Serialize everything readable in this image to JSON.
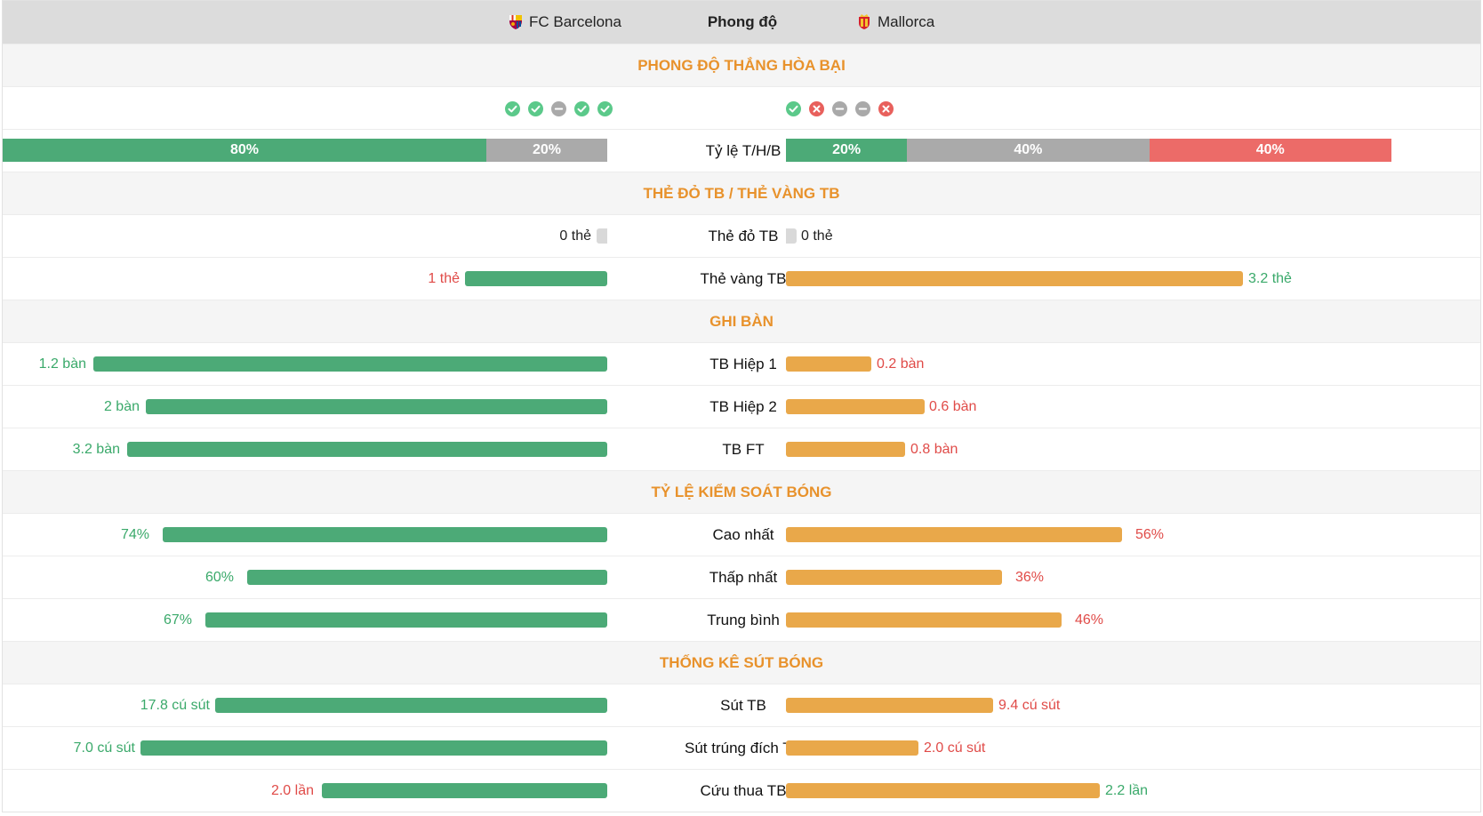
{
  "header": {
    "home_team": "FC Barcelona",
    "title": "Phong độ",
    "away_team": "Mallorca"
  },
  "colors": {
    "home_bar": "#4caa77",
    "away_bar": "#e9a84a",
    "section_title": "#e8922c",
    "win": "#5bc98a",
    "draw": "#a9a9a9",
    "loss": "#e8605c"
  },
  "form": {
    "section_title": "PHONG ĐỘ THẮNG HÒA BẠI",
    "home_results": [
      "win",
      "win",
      "draw",
      "win",
      "win"
    ],
    "away_results": [
      "win",
      "loss",
      "draw",
      "draw",
      "loss"
    ],
    "ratio_label": "Tỷ lệ T/H/B",
    "home_ratio": [
      {
        "type": "win",
        "label": "80%",
        "value": 80
      },
      {
        "type": "draw",
        "label": "20%",
        "value": 20
      }
    ],
    "away_ratio": [
      {
        "type": "win",
        "label": "20%",
        "value": 20
      },
      {
        "type": "draw",
        "label": "40%",
        "value": 40
      },
      {
        "type": "loss",
        "label": "40%",
        "value": 40
      }
    ]
  },
  "cards": {
    "section_title": "THẺ ĐỎ TB / THẺ VÀNG TB",
    "red": {
      "label": "Thẻ đỏ TB",
      "home": "0 thẻ",
      "away": "0 thẻ"
    },
    "yellow": {
      "label": "Thẻ vàng TB",
      "home": "1 thẻ",
      "away": "3.2 thẻ"
    }
  },
  "goals": {
    "section_title": "GHI BÀN",
    "rows": [
      {
        "label": "TB Hiệp 1",
        "home": "1.2 bàn",
        "away": "0.2 bàn"
      },
      {
        "label": "TB Hiệp 2",
        "home": "2 bàn",
        "away": "0.6 bàn"
      },
      {
        "label": "TB FT",
        "home": "3.2 bàn",
        "away": "0.8 bàn"
      }
    ]
  },
  "possession": {
    "section_title": "TỶ LỆ KIỂM SOÁT BÓNG",
    "rows": [
      {
        "label": "Cao nhất",
        "home": "74%",
        "away": "56%"
      },
      {
        "label": "Thấp nhất",
        "home": "60%",
        "away": "36%"
      },
      {
        "label": "Trung bình",
        "home": "67%",
        "away": "46%"
      }
    ]
  },
  "shots": {
    "section_title": "THỐNG KÊ SÚT BÓNG",
    "rows": [
      {
        "label": "Sút TB",
        "home": "17.8 cú sút",
        "away": "9.4 cú sút"
      },
      {
        "label": "Sút trúng đích TB",
        "home": "7.0 cú sút",
        "away": "2.0 cú sút"
      },
      {
        "label": "Cứu thua TB",
        "home": "2.0 lần",
        "away": "2.2 lần"
      }
    ]
  }
}
